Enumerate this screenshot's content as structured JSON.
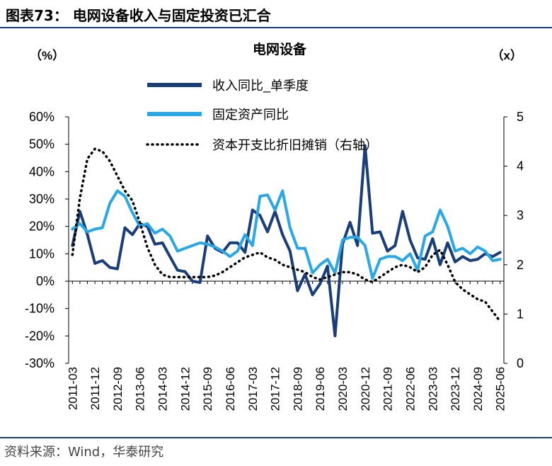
{
  "header": {
    "title": "图表73： 电网设备收入与固定投资已汇合"
  },
  "source": "资料来源：Wind，华泰研究",
  "chart_data": {
    "type": "line",
    "title": "电网设备",
    "y_left_unit": "（%）",
    "y_right_unit": "（x）",
    "ylim_left": [
      -30,
      60
    ],
    "ylim_right": [
      0,
      5
    ],
    "y_left_ticks": [
      "60%",
      "50%",
      "40%",
      "30%",
      "20%",
      "10%",
      "0%",
      "-10%",
      "-20%",
      "-30%"
    ],
    "y_right_ticks": [
      "5",
      "4",
      "3",
      "2",
      "1",
      "0"
    ],
    "x_tick_labels": [
      "2011-03",
      "2011-12",
      "2012-09",
      "2013-06",
      "2014-03",
      "2014-12",
      "2015-09",
      "2016-06",
      "2017-03",
      "2017-12",
      "2018-09",
      "2019-06",
      "2020-03",
      "2020-12",
      "2021-09",
      "2022-06",
      "2023-03",
      "2023-12",
      "2024-09",
      "2025-06"
    ],
    "x": [
      "2011-03",
      "2011-06",
      "2011-09",
      "2011-12",
      "2012-03",
      "2012-06",
      "2012-09",
      "2012-12",
      "2013-03",
      "2013-06",
      "2013-09",
      "2013-12",
      "2014-03",
      "2014-06",
      "2014-09",
      "2014-12",
      "2015-03",
      "2015-06",
      "2015-09",
      "2015-12",
      "2016-03",
      "2016-06",
      "2016-09",
      "2016-12",
      "2017-03",
      "2017-06",
      "2017-09",
      "2017-12",
      "2018-03",
      "2018-06",
      "2018-09",
      "2018-12",
      "2019-03",
      "2019-06",
      "2019-09",
      "2019-12",
      "2020-03",
      "2020-06",
      "2020-09",
      "2020-12",
      "2021-03",
      "2021-06",
      "2021-09",
      "2021-12",
      "2022-03",
      "2022-06",
      "2022-09",
      "2022-12",
      "2023-03",
      "2023-06",
      "2023-09",
      "2023-12",
      "2024-03",
      "2024-06",
      "2024-09",
      "2024-12",
      "2025-03",
      "2025-06"
    ],
    "legend": "top-center",
    "grid": false,
    "series": [
      {
        "name": "收入同比_单季度",
        "axis": "left",
        "color": "#1a3e7a",
        "style": "solid",
        "values": [
          13,
          25.5,
          17,
          6.5,
          7.5,
          5,
          4.5,
          19.5,
          17,
          21,
          20,
          13.5,
          14,
          9,
          4,
          3.5,
          0,
          -0.5,
          16.5,
          12,
          10.5,
          14,
          14,
          10.5,
          26,
          24,
          18,
          25.5,
          17,
          11,
          -3.5,
          2.5,
          -5,
          -1,
          5.5,
          -20,
          13.5,
          21.5,
          13,
          49.5,
          17.5,
          18,
          11,
          13,
          25.5,
          15,
          8.5,
          8,
          15.5,
          6,
          14,
          7,
          9,
          7.5,
          8,
          10,
          9,
          10.5
        ]
      },
      {
        "name": "固定资产同比",
        "axis": "left",
        "color": "#2aa8e6",
        "style": "solid",
        "values": [
          19,
          21,
          18,
          19,
          19.5,
          28.5,
          33,
          31,
          25,
          20,
          21,
          17.5,
          19,
          16.5,
          11,
          12,
          13,
          14,
          13.5,
          12.5,
          11,
          9,
          11,
          17,
          13,
          31,
          31.5,
          26,
          33,
          19.5,
          12,
          12,
          3,
          6,
          8,
          3,
          15,
          16,
          16,
          13,
          1,
          8,
          9,
          9,
          7.5,
          10,
          4,
          16.5,
          18,
          26,
          20,
          11,
          12,
          10,
          12.5,
          11,
          7.5,
          8
        ]
      },
      {
        "name": "资本开支比折旧摊销（右轴）",
        "axis": "right",
        "color": "#000000",
        "style": "dotted",
        "values": [
          2.2,
          3.35,
          4.15,
          4.35,
          4.3,
          4.1,
          3.8,
          3.5,
          3.3,
          2.85,
          2.35,
          2.0,
          1.8,
          1.75,
          1.75,
          1.75,
          1.75,
          1.75,
          1.75,
          1.78,
          1.85,
          1.95,
          2.05,
          2.15,
          2.2,
          2.25,
          2.15,
          2.1,
          2.0,
          1.95,
          1.9,
          1.85,
          1.75,
          1.7,
          1.75,
          1.8,
          1.85,
          1.85,
          1.8,
          1.7,
          1.65,
          1.75,
          1.85,
          1.95,
          2.0,
          1.95,
          1.85,
          1.95,
          2.2,
          2.3,
          2.0,
          1.65,
          1.5,
          1.4,
          1.3,
          1.25,
          1.05,
          0.85
        ]
      }
    ]
  }
}
